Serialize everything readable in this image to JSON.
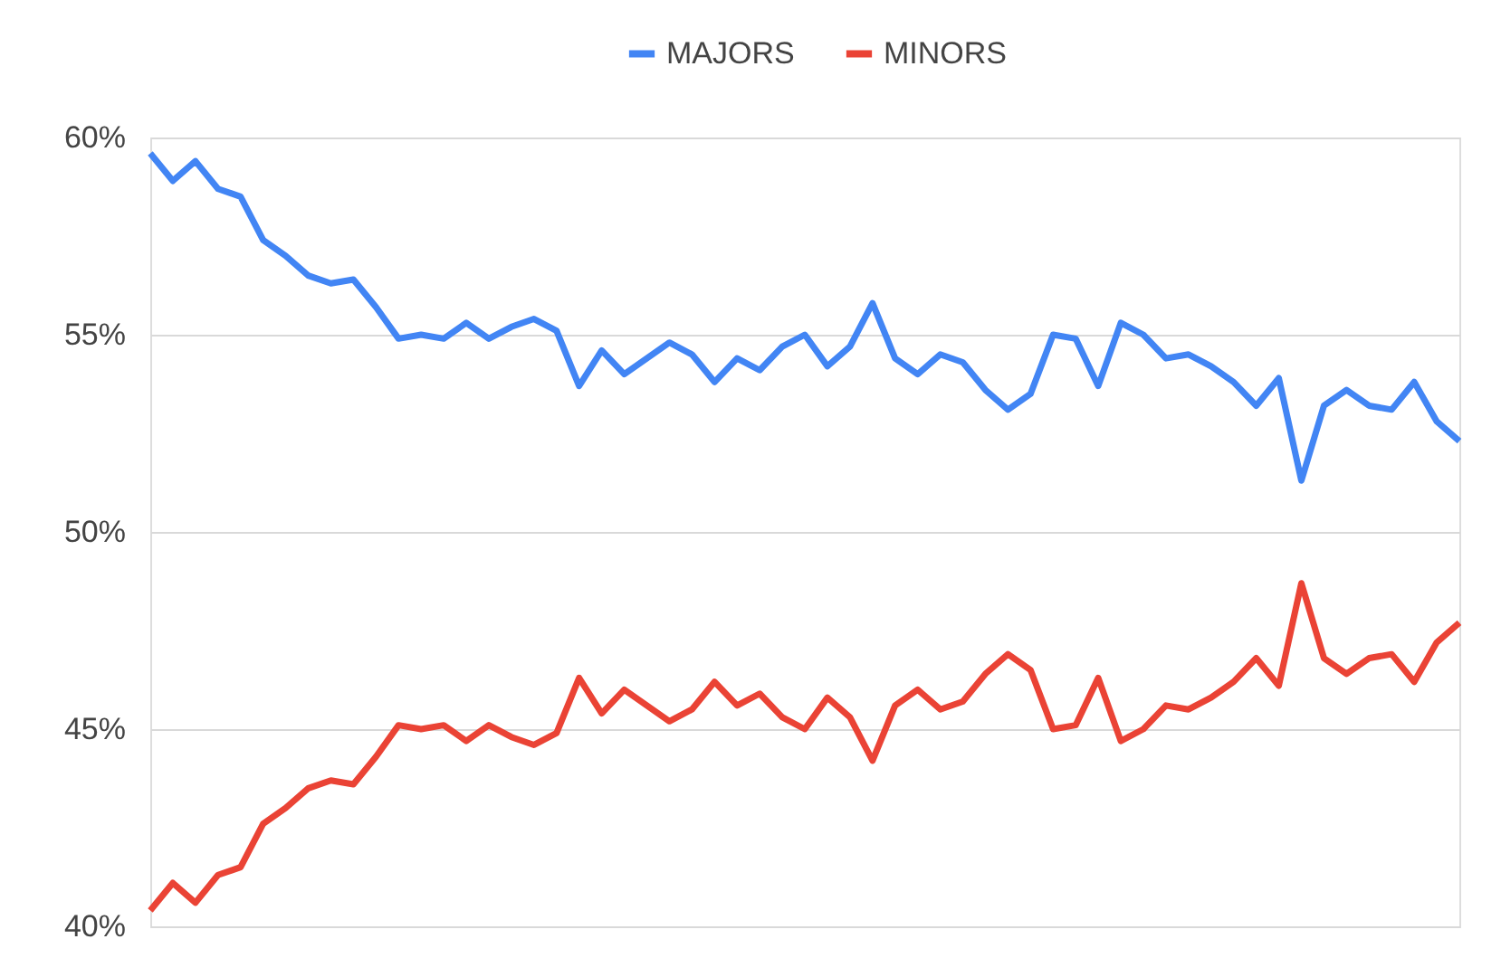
{
  "chart_data": {
    "type": "line",
    "categories": [
      null,
      null,
      null,
      null,
      null,
      null,
      null,
      null,
      null,
      null,
      null,
      null,
      null,
      null,
      null,
      null,
      null,
      null,
      null,
      null,
      null,
      null,
      null,
      null,
      null,
      null,
      null,
      null,
      null,
      null,
      null,
      null,
      null,
      null,
      null,
      null,
      null,
      null,
      null,
      null,
      null,
      null,
      null,
      null,
      null,
      null,
      null,
      null,
      null,
      null,
      null,
      null,
      null,
      null,
      null,
      null,
      null,
      null,
      null
    ],
    "series": [
      {
        "name": "MAJORS",
        "color": "#4285f4",
        "values": [
          59.6,
          58.9,
          59.4,
          58.7,
          58.5,
          57.4,
          57.0,
          56.5,
          56.3,
          56.4,
          55.7,
          54.9,
          55.0,
          54.9,
          55.3,
          54.9,
          55.2,
          55.4,
          55.1,
          53.7,
          54.6,
          54.0,
          54.4,
          54.8,
          54.5,
          53.8,
          54.4,
          54.1,
          54.7,
          55.0,
          54.2,
          54.7,
          55.8,
          54.4,
          54.0,
          54.5,
          54.3,
          53.6,
          53.1,
          53.5,
          55.0,
          54.9,
          53.7,
          55.3,
          55.0,
          54.4,
          54.5,
          54.2,
          53.8,
          53.2,
          53.9,
          51.3,
          53.2,
          53.6,
          53.2,
          53.1,
          53.8,
          52.8,
          52.3
        ]
      },
      {
        "name": "MINORS",
        "color": "#ea4335",
        "values": [
          40.4,
          41.1,
          40.6,
          41.3,
          41.5,
          42.6,
          43.0,
          43.5,
          43.7,
          43.6,
          44.3,
          45.1,
          45.0,
          45.1,
          44.7,
          45.1,
          44.8,
          44.6,
          44.9,
          46.3,
          45.4,
          46.0,
          45.6,
          45.2,
          45.5,
          46.2,
          45.6,
          45.9,
          45.3,
          45.0,
          45.8,
          45.3,
          44.2,
          45.6,
          46.0,
          45.5,
          45.7,
          46.4,
          46.9,
          46.5,
          45.0,
          45.1,
          46.3,
          44.7,
          45.0,
          45.6,
          45.5,
          45.8,
          46.2,
          46.8,
          46.1,
          48.7,
          46.8,
          46.4,
          46.8,
          46.9,
          46.2,
          47.2,
          47.7
        ]
      }
    ],
    "ylim": [
      40,
      60
    ],
    "yticks": [
      {
        "value": 40,
        "label": "40%"
      },
      {
        "value": 45,
        "label": "45%"
      },
      {
        "value": 50,
        "label": "50%"
      },
      {
        "value": 55,
        "label": "55%"
      },
      {
        "value": 60,
        "label": "60%"
      }
    ],
    "grid": "y",
    "legend": "top",
    "marker": "none",
    "line_style": "solid"
  }
}
